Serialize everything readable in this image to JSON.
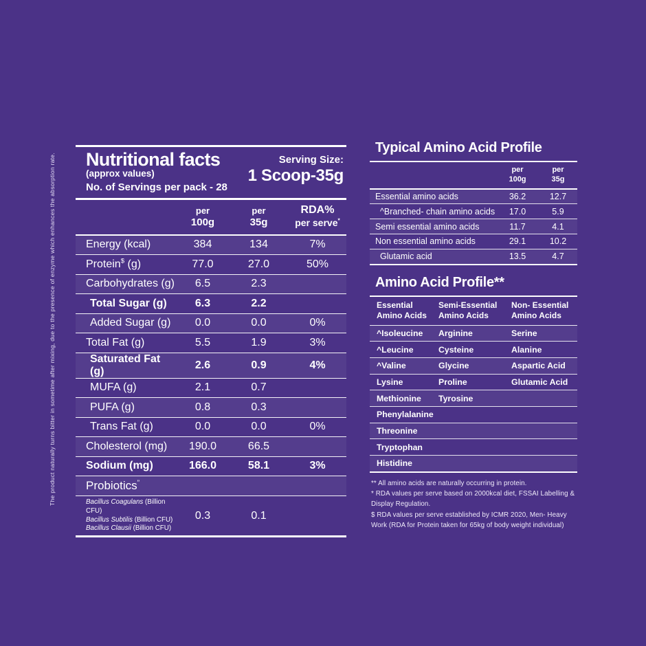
{
  "colors": {
    "background": "#4B3287",
    "text": "#FFFFFF",
    "rule": "#FFFFFF"
  },
  "side_note": "The product naturally turns bitter in sometime after mixing, due to the presence of enzyme which enhances the absorption rate.",
  "nutrition": {
    "title": "Nutritional facts",
    "subtitle": "(approx values)",
    "servings_line": "No. of Servings per pack - 28",
    "serving_size_label": "Serving Size:",
    "serving_size_value": "1 Scoop-35g",
    "columns": {
      "c1l1": "per",
      "c1l2": "100g",
      "c2l1": "per",
      "c2l2": "35g",
      "c3l1": "RDA%",
      "c3l2": "per serve",
      "c3sup": "*"
    },
    "rows": [
      {
        "label": "Energy (kcal)",
        "per100": "384",
        "per35": "134",
        "rda": "7%"
      },
      {
        "label": "Protein",
        "sup": "$",
        "suffix": " (g)",
        "per100": "77.0",
        "per35": "27.0",
        "rda": "50%"
      },
      {
        "label": "Carbohydrates (g)",
        "per100": "6.5",
        "per35": "2.3",
        "rda": ""
      },
      {
        "label": "Total Sugar (g)",
        "bold": true,
        "indent": true,
        "per100": "6.3",
        "per35": "2.2",
        "rda": ""
      },
      {
        "label": "Added Sugar (g)",
        "indent": true,
        "per100": "0.0",
        "per35": "0.0",
        "rda": "0%"
      },
      {
        "label": "Total Fat (g)",
        "per100": "5.5",
        "per35": "1.9",
        "rda": "3%"
      },
      {
        "label": "Saturated Fat (g)",
        "bold": true,
        "indent": true,
        "per100": "2.6",
        "per35": "0.9",
        "rda": "4%"
      },
      {
        "label": "MUFA (g)",
        "indent": true,
        "per100": "2.1",
        "per35": "0.7",
        "rda": ""
      },
      {
        "label": "PUFA (g)",
        "indent": true,
        "per100": "0.8",
        "per35": "0.3",
        "rda": ""
      },
      {
        "label": "Trans Fat (g)",
        "indent": true,
        "per100": "0.0",
        "per35": "0.0",
        "rda": "0%"
      },
      {
        "label": "Cholesterol (mg)",
        "per100": "190.0",
        "per35": "66.5",
        "rda": ""
      },
      {
        "label": "Sodium (mg)",
        "bold": true,
        "per100": "166.0",
        "per35": "58.1",
        "rda": "3%"
      },
      {
        "label": "Probiotics",
        "sup": "”",
        "type": "section",
        "per100": "",
        "per35": "",
        "rda": ""
      },
      {
        "type": "species",
        "species": [
          {
            "italic": "Bacillus Coagulans",
            "rest": " (Billion CFU)"
          },
          {
            "italic": "Bacillus Subtilis",
            "rest": " (Billion CFU)"
          },
          {
            "italic": "Bacillus Clausii",
            "rest": " (Billion CFU)"
          }
        ],
        "per100": "0.3",
        "per35": "0.1",
        "rda": ""
      }
    ]
  },
  "typical_profile": {
    "title": "Typical Amino Acid Profile",
    "columns": {
      "c1l1": "per",
      "c1l2": "100g",
      "c2l1": "per",
      "c2l2": "35g"
    },
    "rows": [
      {
        "label": "Essential amino acids",
        "per100": "36.2",
        "per35": "12.7"
      },
      {
        "label": "^Branched- chain amino acids",
        "indent": true,
        "per100": "17.0",
        "per35": "5.9"
      },
      {
        "label": "Semi essential amino acids",
        "per100": "11.7",
        "per35": "4.1"
      },
      {
        "label": "Non essential amino acids",
        "per100": "29.1",
        "per35": "10.2"
      },
      {
        "label": "Glutamic acid",
        "indent": true,
        "per100": "13.5",
        "per35": "4.7"
      }
    ]
  },
  "acid_profile": {
    "title": "Amino Acid Profile**",
    "headers": [
      {
        "l1": "Essential",
        "l2": "Amino Acids"
      },
      {
        "l1": "Semi-Essential",
        "l2": "Amino Acids"
      },
      {
        "l1": "Non- Essential",
        "l2": "Amino Acids"
      }
    ],
    "rows": [
      [
        "^Isoleucine",
        "Arginine",
        "Serine"
      ],
      [
        "^Leucine",
        "Cysteine",
        "Alanine"
      ],
      [
        "^Valine",
        "Glycine",
        "Aspartic Acid"
      ],
      [
        "Lysine",
        "Proline",
        "Glutamic Acid"
      ],
      [
        "Methionine",
        "Tyrosine",
        ""
      ],
      [
        "Phenylalanine",
        "",
        ""
      ],
      [
        "Threonine",
        "",
        ""
      ],
      [
        "Tryptophan",
        "",
        ""
      ],
      [
        "Histidine",
        "",
        ""
      ]
    ]
  },
  "footnotes": [
    "** All amino acids are naturally occurring in protein.",
    "* RDA values per serve based on 2000kcal diet, FSSAI Labelling & Display Regulation.",
    "$ RDA values per serve established by ICMR 2020, Men- Heavy Work (RDA for Protein taken for 65kg of body weight individual)"
  ]
}
